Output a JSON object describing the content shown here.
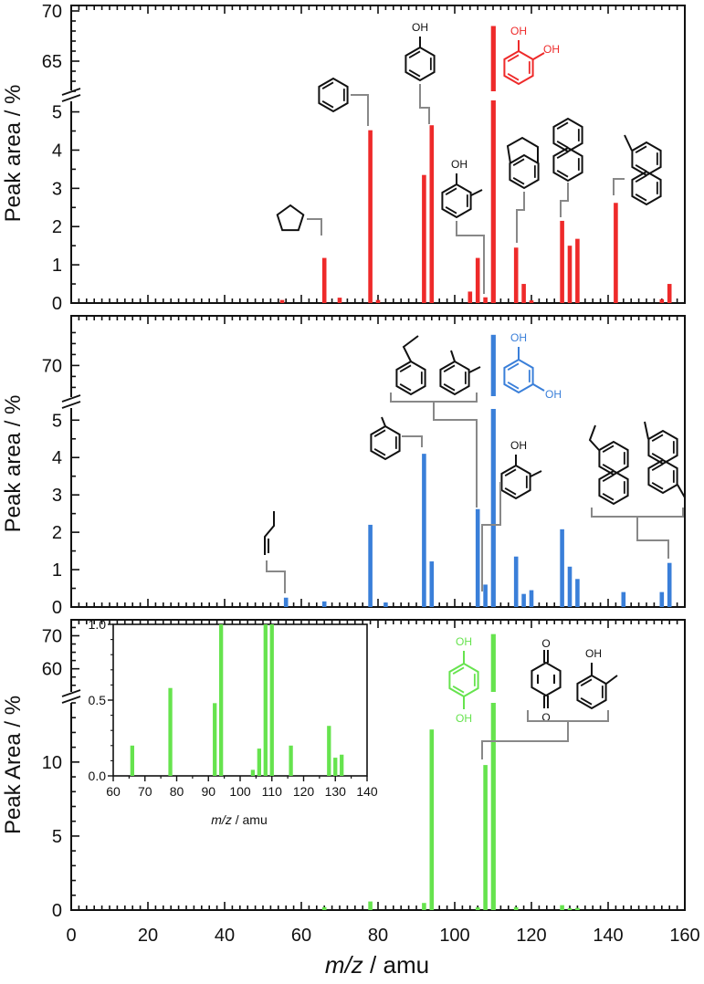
{
  "figure": {
    "xlabel_italic": "m/z",
    "xlabel_rest": " / amu",
    "xlim": [
      0,
      160
    ],
    "xticks": [
      "0",
      "20",
      "40",
      "60",
      "80",
      "100",
      "120",
      "140",
      "160"
    ]
  },
  "chart_data": [
    {
      "type": "bar",
      "panel": "top",
      "color": "#ee2a2a",
      "ylabel": "Peak area / %",
      "ylim_lower": [
        0,
        5.3
      ],
      "ylim_upper": [
        62,
        70
      ],
      "yticks_lower": [
        "0",
        "1",
        "2",
        "3",
        "4",
        "5"
      ],
      "yticks_upper": [
        "65",
        "70"
      ],
      "x": [
        55,
        66,
        70,
        78,
        80,
        92,
        94,
        104,
        106,
        108,
        110,
        116,
        118,
        120,
        128,
        130,
        132,
        142,
        154,
        156
      ],
      "values": [
        0.08,
        1.18,
        0.14,
        4.52,
        0.08,
        3.35,
        4.65,
        0.3,
        1.18,
        0.15,
        68.5,
        1.45,
        0.5,
        0.07,
        2.15,
        1.5,
        1.68,
        2.62,
        0.1,
        0.5
      ],
      "annotations": [
        {
          "label": "OH",
          "target": "mass 94 bar"
        },
        {
          "label": "OH",
          "target": "mass 108 bar"
        },
        {
          "label": "OH",
          "target": "mass 110 bar, catechol, red"
        },
        {
          "label": "OH",
          "target": "mass 110 bar, catechol, red"
        }
      ]
    },
    {
      "type": "bar",
      "panel": "middle",
      "color": "#3a7fd9",
      "ylabel": "Peak area / %",
      "ylim_lower": [
        0,
        5.3
      ],
      "ylim_upper": [
        63,
        78
      ],
      "yticks_lower": [
        "0",
        "1",
        "2",
        "3",
        "4",
        "5"
      ],
      "yticks_upper": [
        "70"
      ],
      "x": [
        56,
        66,
        78,
        82,
        92,
        94,
        106,
        108,
        110,
        116,
        118,
        120,
        128,
        130,
        132,
        144,
        154,
        156
      ],
      "values": [
        0.25,
        0.15,
        2.2,
        0.12,
        4.1,
        1.22,
        2.62,
        0.6,
        77.0,
        1.35,
        0.35,
        0.45,
        2.08,
        1.08,
        0.75,
        0.4,
        0.4,
        1.18
      ],
      "annotations": [
        {
          "label": "OH",
          "target": "mass 110 bar, resorcinol, blue"
        },
        {
          "label": "OH",
          "target": "mass 110 bar, resorcinol, blue"
        },
        {
          "label": "OH",
          "target": "mass 108 bar"
        }
      ]
    },
    {
      "type": "bar",
      "panel": "bottom",
      "color": "#66e34e",
      "ylabel": "Peak Area / %",
      "ylim_lower": [
        0,
        14
      ],
      "ylim_upper": [
        53,
        74
      ],
      "yticks_lower": [
        "0",
        "5",
        "10"
      ],
      "yticks_upper": [
        "60",
        "70"
      ],
      "x": [
        66,
        78,
        92,
        94,
        106,
        108,
        110,
        116,
        128,
        130,
        132
      ],
      "values": [
        0.2,
        0.58,
        0.48,
        12.2,
        0.18,
        9.8,
        70.5,
        0.2,
        0.33,
        0.12,
        0.14
      ],
      "annotations": [
        {
          "label": "OH",
          "target": "mass 110 bar, hydroquinone, green"
        },
        {
          "label": "OH",
          "target": "mass 110 bar, hydroquinone, green"
        },
        {
          "label": "O",
          "target": "mass 108 bar, benzoquinone"
        },
        {
          "label": "O",
          "target": "mass 108 bar, benzoquinone"
        },
        {
          "label": "OH",
          "target": "mass 108 bar, cresol"
        }
      ],
      "inset": {
        "type": "bar",
        "xlabel_italic": "m/z",
        "xlabel_rest": " / amu",
        "xlim": [
          60,
          140
        ],
        "ylim": [
          0,
          1.0
        ],
        "xticks": [
          "60",
          "70",
          "80",
          "90",
          "100",
          "110",
          "120",
          "130",
          "140"
        ],
        "yticks": [
          "0.0",
          "0.5",
          "1.0"
        ],
        "x": [
          66,
          78,
          92,
          94,
          104,
          106,
          108,
          110,
          116,
          128,
          130,
          132
        ],
        "values": [
          0.2,
          0.58,
          0.48,
          1.0,
          0.04,
          0.18,
          1.0,
          1.0,
          0.2,
          0.33,
          0.12,
          0.14
        ]
      }
    }
  ]
}
